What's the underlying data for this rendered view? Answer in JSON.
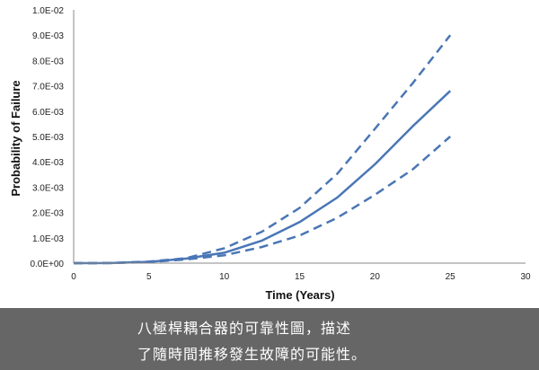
{
  "chart_data": {
    "type": "line",
    "title": "",
    "xlabel": "Time (Years)",
    "ylabel": "Probability of Failure",
    "xlim": [
      0,
      30
    ],
    "ylim": [
      0,
      0.01
    ],
    "x_ticks": [
      "0",
      "5",
      "10",
      "15",
      "20",
      "25",
      "30"
    ],
    "y_ticks": [
      "0.0E+00",
      "1.0E-03",
      "2.0E-03",
      "3.0E-03",
      "4.0E-03",
      "5.0E-03",
      "6.0E-03",
      "7.0E-03",
      "8.0E-03",
      "9.0E-03",
      "1.0E-02"
    ],
    "grid": false,
    "legend": "none",
    "color": "#4a76b5",
    "series": [
      {
        "style": "dashed",
        "x": [
          0,
          2.5,
          5,
          7.5,
          10,
          12.5,
          15,
          17.5,
          20,
          22.5,
          25
        ],
        "y": [
          0,
          5e-06,
          6e-05,
          0.0002,
          0.00059,
          0.00124,
          0.00218,
          0.00353,
          0.0053,
          0.0071,
          0.009
        ]
      },
      {
        "style": "solid",
        "x": [
          0,
          2.5,
          5,
          7.5,
          10,
          12.5,
          15,
          17.5,
          20,
          22.5,
          25
        ],
        "y": [
          0,
          4e-06,
          5e-05,
          0.00018,
          0.00041,
          0.00089,
          0.00162,
          0.00259,
          0.0039,
          0.0054,
          0.0068
        ]
      },
      {
        "style": "dashed",
        "x": [
          0,
          2.5,
          5,
          7.5,
          10,
          12.5,
          15,
          17.5,
          20,
          22.5,
          25
        ],
        "y": [
          0,
          3e-06,
          4e-05,
          0.00015,
          0.00031,
          0.00064,
          0.00109,
          0.00179,
          0.0027,
          0.0037,
          0.005
        ]
      }
    ]
  },
  "caption": {
    "line1": "八極桿耦合器的可靠性圖，描述",
    "line2": "了隨時間推移發生故障的可能性。"
  }
}
